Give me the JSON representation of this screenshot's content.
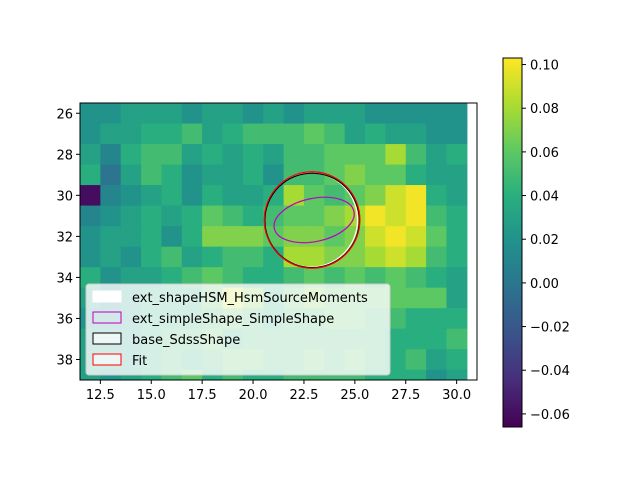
{
  "chart_data": {
    "type": "heatmap",
    "colormap": "viridis",
    "x_range": [
      11.5,
      31.0
    ],
    "y_range": [
      25.5,
      39.0
    ],
    "y_inverted": true,
    "x_start": 12,
    "y_start": 26,
    "x_ticks": [
      "12.5",
      "15.0",
      "17.5",
      "20.0",
      "22.5",
      "25.0",
      "27.5",
      "30.0"
    ],
    "y_ticks": [
      "26",
      "28",
      "30",
      "32",
      "34",
      "36",
      "38"
    ],
    "colorbar": {
      "min": -0.066,
      "max": 0.103,
      "ticks": [
        "0.10",
        "0.08",
        "0.06",
        "0.04",
        "0.02",
        "0.00",
        "−0.02",
        "−0.04",
        "−0.06"
      ]
    },
    "grid": false,
    "legend_placement": "lower-left",
    "values": [
      [
        0.02,
        0.02,
        0.03,
        0.03,
        0.03,
        0.02,
        0.03,
        0.03,
        0.02,
        0.03,
        0.02,
        0.03,
        0.03,
        0.03,
        0.02,
        0.02,
        0.02,
        0.02,
        0.02
      ],
      [
        0.02,
        0.03,
        0.03,
        0.04,
        0.04,
        0.05,
        0.03,
        0.04,
        0.05,
        0.05,
        0.05,
        0.06,
        0.05,
        0.03,
        0.04,
        0.03,
        0.03,
        0.02,
        0.02
      ],
      [
        0.03,
        0.01,
        0.04,
        0.05,
        0.05,
        0.03,
        0.04,
        0.03,
        0.04,
        0.03,
        0.05,
        0.05,
        0.06,
        0.06,
        0.06,
        0.08,
        0.05,
        0.03,
        0.04
      ],
      [
        0.04,
        0.0,
        0.03,
        0.05,
        0.04,
        0.02,
        0.03,
        0.03,
        0.04,
        0.02,
        0.05,
        0.05,
        0.06,
        0.07,
        0.06,
        0.06,
        0.04,
        0.03,
        0.03
      ],
      [
        -0.06,
        0.01,
        0.02,
        0.03,
        0.04,
        0.02,
        0.04,
        0.03,
        0.03,
        0.04,
        0.08,
        0.06,
        0.05,
        0.06,
        0.07,
        0.09,
        0.1,
        0.04,
        0.03
      ],
      [
        0.01,
        0.02,
        0.03,
        0.04,
        0.03,
        0.04,
        0.06,
        0.05,
        0.04,
        0.05,
        0.06,
        0.06,
        0.07,
        0.08,
        0.1,
        0.09,
        0.1,
        0.05,
        0.04
      ],
      [
        0.02,
        0.03,
        0.03,
        0.04,
        0.02,
        0.04,
        0.07,
        0.07,
        0.07,
        0.06,
        0.07,
        0.07,
        0.06,
        0.07,
        0.09,
        0.1,
        0.09,
        0.06,
        0.04
      ],
      [
        0.02,
        0.03,
        0.02,
        0.04,
        0.05,
        0.03,
        0.04,
        0.05,
        0.05,
        0.04,
        0.08,
        0.08,
        0.07,
        0.07,
        0.08,
        0.09,
        0.08,
        0.05,
        0.04
      ],
      [
        0.04,
        0.02,
        0.03,
        0.03,
        0.04,
        0.05,
        0.06,
        0.05,
        0.04,
        0.04,
        0.05,
        0.06,
        0.05,
        0.06,
        0.05,
        0.06,
        0.05,
        0.04,
        0.03
      ],
      [
        0.03,
        0.01,
        0.03,
        0.04,
        0.04,
        0.04,
        0.06,
        0.09,
        0.07,
        0.04,
        0.06,
        0.07,
        0.06,
        0.06,
        0.06,
        0.06,
        0.06,
        0.06,
        0.03
      ],
      [
        0.02,
        0.02,
        0.03,
        0.04,
        0.04,
        0.04,
        0.05,
        0.06,
        0.05,
        0.04,
        0.05,
        0.05,
        0.06,
        0.06,
        0.05,
        0.05,
        0.04,
        0.04,
        0.04
      ],
      [
        0.03,
        0.03,
        0.03,
        0.04,
        0.05,
        0.05,
        0.06,
        0.04,
        0.05,
        0.05,
        0.05,
        0.05,
        0.05,
        0.05,
        0.05,
        0.04,
        0.04,
        0.04,
        0.05
      ],
      [
        0.03,
        0.03,
        0.03,
        0.04,
        0.05,
        0.04,
        0.05,
        0.06,
        0.06,
        0.05,
        0.05,
        0.06,
        0.05,
        0.06,
        0.05,
        0.04,
        0.05,
        0.03,
        0.04
      ],
      [
        0.03,
        0.02,
        0.03,
        0.04,
        0.05,
        0.06,
        0.04,
        0.05,
        0.04,
        0.04,
        0.05,
        0.05,
        0.05,
        0.05,
        0.04,
        0.04,
        0.04,
        0.02,
        0.03
      ]
    ],
    "legend": [
      {
        "label": "ext_shapeHSM_HsmSourceMoments",
        "edge": "#ffffff"
      },
      {
        "label": "ext_simpleShape_SimpleShape",
        "edge": "#bf00bf"
      },
      {
        "label": "base_SdssShape",
        "edge": "#000000"
      },
      {
        "label": "Fit",
        "edge": "#ff0000"
      }
    ],
    "ellipses": [
      {
        "label": "ext_shapeHSM_HsmSourceMoments",
        "cx": 22.85,
        "cy": 31.2,
        "rx": 2.28,
        "ry": 2.3,
        "edge": "#ffffff"
      },
      {
        "label": "base_SdssShape",
        "cx": 22.9,
        "cy": 31.22,
        "rx": 2.32,
        "ry": 2.3,
        "edge": "#000000"
      },
      {
        "label": "Fit",
        "cx": 22.9,
        "cy": 31.2,
        "rx": 2.35,
        "ry": 2.35,
        "edge": "#ff0000"
      },
      {
        "label": "ext_simpleShape_SimpleShape",
        "cx": 23.0,
        "cy": 31.2,
        "rx": 2.0,
        "ry": 1.05,
        "angle_deg": -12,
        "edge": "#bf00bf"
      }
    ]
  }
}
